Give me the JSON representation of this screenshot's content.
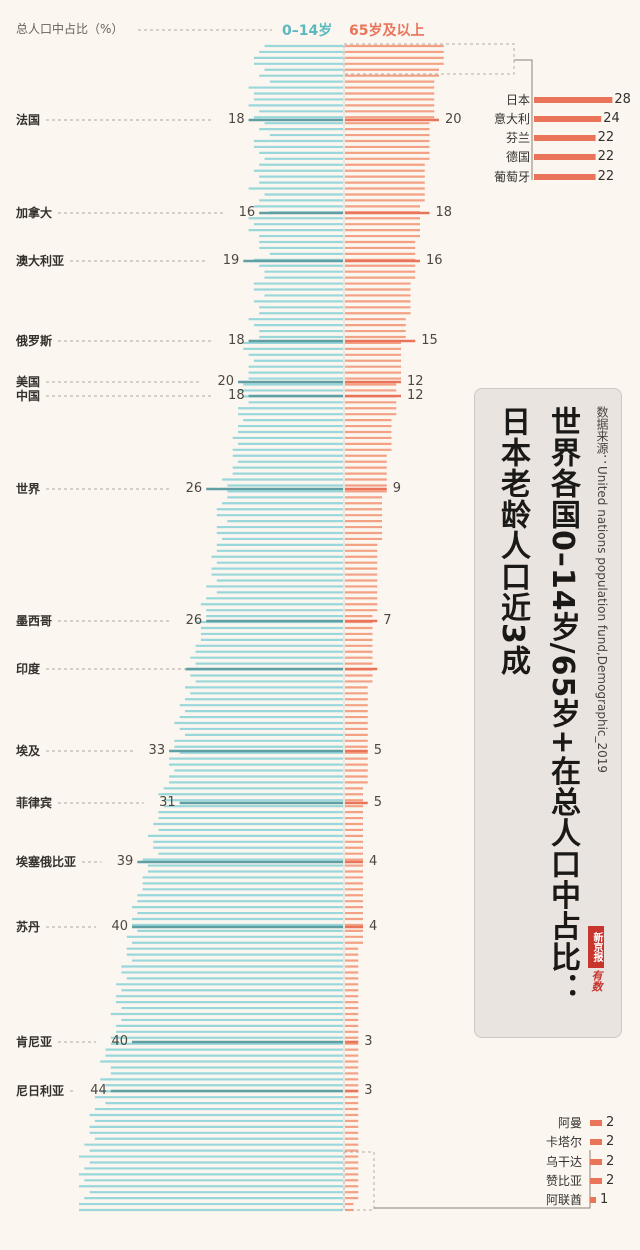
{
  "header": {
    "axis_label": "总人口中占比（%）",
    "young_label": "0–14岁",
    "old_label": "65岁及以上"
  },
  "colors": {
    "young_bar": "#9ad7db",
    "young_highlight": "#5f9ea3",
    "old_bar": "#f3a185",
    "old_highlight": "#e9745a",
    "background": "#fbf6ef"
  },
  "title": {
    "line1": "世界各国0–14岁/65岁+在总人口中占比：",
    "line2": "日本老龄人口近3成",
    "source": "数据来源：United nations population fund,Demographic_2019",
    "logo_a": "新京报",
    "logo_b": "有数"
  },
  "chart_data": {
    "type": "bar",
    "description_note": "",
    "highlighted_countries": [
      {
        "name": "法国",
        "young": 18,
        "old": 20
      },
      {
        "name": "加拿大",
        "young": 16,
        "old": 18
      },
      {
        "name": "澳大利亚",
        "young": 19,
        "old": 16
      },
      {
        "name": "俄罗斯",
        "young": 18,
        "old": 15
      },
      {
        "name": "美国",
        "young": 20,
        "old": 12
      },
      {
        "name": "中国",
        "young": 18,
        "old": 12
      },
      {
        "name": "世界",
        "young": 26,
        "old": 9
      },
      {
        "name": "墨西哥",
        "young": 26,
        "old": 7
      },
      {
        "name": "印度",
        "young": null,
        "old": null
      },
      {
        "name": "埃及",
        "young": 33,
        "old": 5
      },
      {
        "name": "菲律宾",
        "young": 31,
        "old": 5
      },
      {
        "name": "埃塞俄比亚",
        "young": 39,
        "old": 4
      },
      {
        "name": "苏丹",
        "young": 40,
        "old": 4
      },
      {
        "name": "肯尼亚",
        "young": 40,
        "old": 3
      },
      {
        "name": "尼日利亚",
        "young": 44,
        "old": 3
      }
    ],
    "top_old": [
      {
        "name": "日本",
        "old": 28
      },
      {
        "name": "意大利",
        "old": 24
      },
      {
        "name": "芬兰",
        "old": 22
      },
      {
        "name": "德国",
        "old": 22
      },
      {
        "name": "葡萄牙",
        "old": 22
      }
    ],
    "bottom_old": [
      {
        "name": "阿曼",
        "old": 2
      },
      {
        "name": "卡塔尔",
        "old": 2
      },
      {
        "name": "乌干达",
        "old": 2
      },
      {
        "name": "赞比亚",
        "old": 2
      },
      {
        "name": "阿联酋",
        "old": 1
      }
    ],
    "other_countries": {
      "young": [
        15,
        16,
        17,
        17,
        15,
        16,
        14,
        18,
        17,
        17,
        18,
        16,
        17,
        15,
        16,
        14,
        17,
        17,
        16,
        15,
        16,
        17,
        16,
        16,
        18,
        15,
        16,
        17,
        14,
        18,
        17,
        18,
        16,
        16,
        16,
        14,
        17,
        16,
        15,
        15,
        17,
        17,
        15,
        17,
        16,
        16,
        18,
        17,
        16,
        16,
        19,
        19,
        18,
        17,
        18,
        18,
        18,
        19,
        20,
        19,
        18,
        20,
        20,
        19,
        20,
        20,
        21,
        20,
        21,
        21,
        20,
        21,
        21,
        23,
        22,
        22,
        22,
        23,
        24,
        24,
        22,
        24,
        24,
        23,
        24,
        24,
        25,
        24,
        25,
        25,
        24,
        26,
        24,
        26,
        27,
        26,
        26,
        28,
        27,
        27,
        27,
        28,
        28,
        29,
        28,
        30,
        29,
        28,
        30,
        29,
        30,
        31,
        30,
        31,
        32,
        31,
        30,
        32,
        32,
        31,
        33,
        33,
        32,
        33,
        33,
        34,
        35,
        34,
        34,
        35,
        35,
        36,
        35,
        37,
        36,
        36,
        35,
        38,
        37,
        37,
        38,
        38,
        38,
        39,
        39,
        40,
        39,
        40,
        40,
        39,
        41,
        40,
        41,
        41,
        40,
        42,
        42,
        41,
        43,
        42,
        43,
        43,
        42,
        44,
        42,
        43,
        43,
        44,
        44,
        45,
        45,
        46,
        44,
        44,
        46,
        45,
        46,
        47,
        45,
        47,
        48,
        47,
        48,
        48,
        47,
        49,
        48,
        50,
        48,
        49,
        50,
        49,
        50,
        48,
        49,
        50,
        50
      ],
      "old": [
        21,
        21,
        21,
        21,
        20,
        20,
        19,
        19,
        19,
        19,
        19,
        19,
        19,
        18,
        18,
        18,
        18,
        18,
        18,
        18,
        17,
        17,
        17,
        17,
        17,
        17,
        17,
        16,
        16,
        16,
        16,
        16,
        16,
        15,
        15,
        15,
        15,
        15,
        15,
        15,
        14,
        14,
        14,
        14,
        14,
        14,
        13,
        13,
        13,
        13,
        12,
        12,
        12,
        12,
        12,
        12,
        12,
        11,
        11,
        11,
        11,
        11,
        11,
        10,
        10,
        10,
        10,
        10,
        10,
        9,
        9,
        9,
        9,
        9,
        9,
        9,
        8,
        8,
        8,
        8,
        8,
        8,
        8,
        8,
        7,
        7,
        7,
        7,
        7,
        7,
        7,
        7,
        7,
        7,
        7,
        7,
        6,
        6,
        6,
        6,
        6,
        6,
        6,
        6,
        6,
        6,
        6,
        6,
        5,
        5,
        5,
        5,
        5,
        5,
        5,
        5,
        5,
        5,
        5,
        5,
        5,
        5,
        5,
        5,
        5,
        4,
        4,
        4,
        4,
        4,
        4,
        4,
        4,
        4,
        4,
        4,
        4,
        4,
        4,
        4,
        4,
        4,
        4,
        4,
        4,
        4,
        4,
        4,
        4,
        4,
        4,
        4,
        3,
        3,
        3,
        3,
        3,
        3,
        3,
        3,
        3,
        3,
        3,
        3,
        3,
        3,
        3,
        3,
        3,
        3,
        3,
        3,
        3,
        3,
        3,
        3,
        3,
        3,
        3,
        3,
        3,
        3,
        3,
        3,
        3,
        3,
        3,
        3,
        3,
        3,
        3,
        3,
        3,
        3,
        3,
        2,
        2,
        2,
        2,
        2,
        2,
        2,
        2,
        2,
        2,
        2,
        2,
        2,
        2,
        1,
        1
      ]
    }
  }
}
